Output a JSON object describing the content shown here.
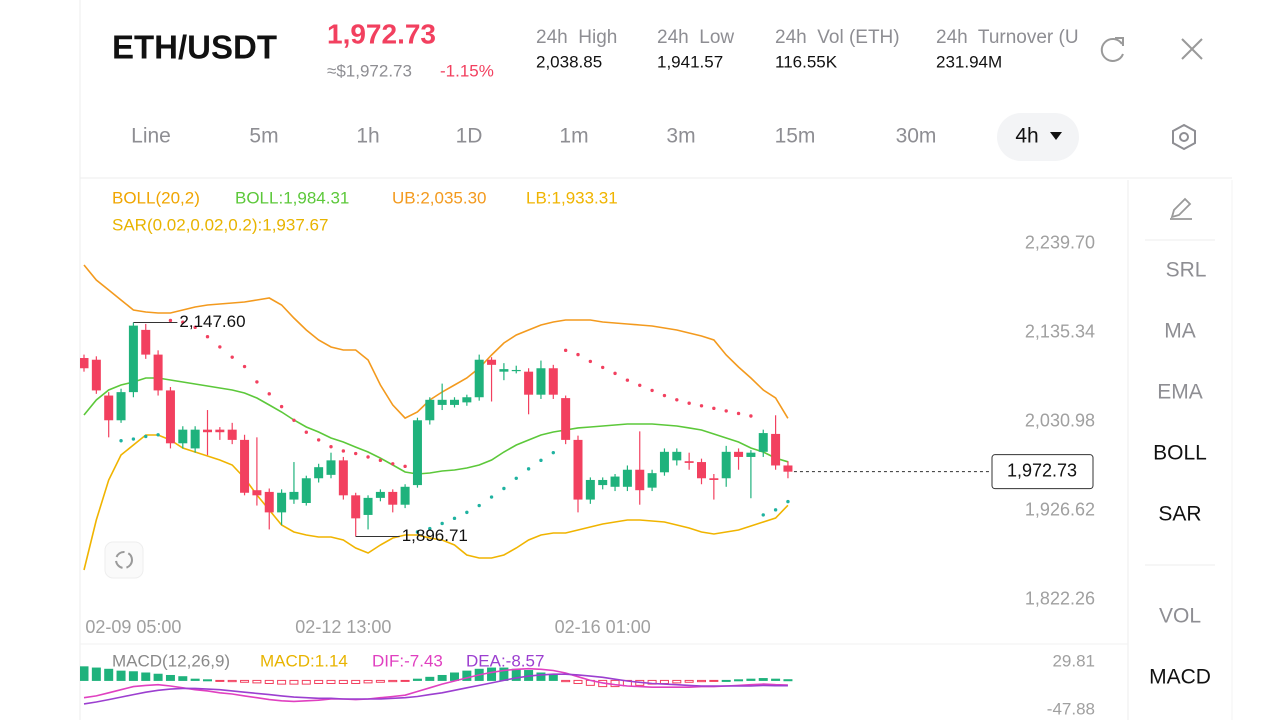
{
  "header": {
    "pair": "ETH/USDT",
    "price": "1,972.73",
    "approx": "≈$1,972.73",
    "change": "-1.15%",
    "stats": [
      {
        "label": "24h  High",
        "value": "2,038.85"
      },
      {
        "label": "24h  Low",
        "value": "1,941.57"
      },
      {
        "label": "24h  Vol (ETH)",
        "value": "116.55K"
      },
      {
        "label": "24h  Turnover (U",
        "value": "231.94M"
      }
    ]
  },
  "timeframes": [
    "Line",
    "5m",
    "1h",
    "1D",
    "1m",
    "3m",
    "15m",
    "30m",
    "4h"
  ],
  "side_tools": [
    "SRL",
    "MA",
    "EMA",
    "BOLL",
    "SAR",
    "VOL",
    "MACD"
  ],
  "chart_data": [
    {
      "type": "candlestick",
      "legend": [
        {
          "text": "BOLL(20,2)",
          "color": "#f0a500"
        },
        {
          "text": "BOLL:1,984.31",
          "color": "#5cc83a"
        },
        {
          "text": "UB:2,035.30",
          "color": "#f39a1e"
        },
        {
          "text": "LB:1,933.31",
          "color": "#f0b400"
        },
        {
          "text": "SAR(0.02,0.02,0.2):1,937.67",
          "color": "#e8b400"
        }
      ],
      "categories": [
        null,
        null,
        null,
        null,
        "02-09 05:00",
        null,
        null,
        null,
        null,
        null,
        null,
        null,
        null,
        null,
        null,
        null,
        null,
        null,
        null,
        null,
        null,
        "02-12 13:00",
        null,
        null,
        null,
        null,
        null,
        null,
        null,
        null,
        null,
        null,
        null,
        null,
        null,
        null,
        null,
        null,
        null,
        null,
        null,
        null,
        "02-16 01:00",
        null,
        null,
        null,
        null,
        null,
        null,
        null,
        null,
        null,
        null,
        null,
        null,
        null,
        null,
        null
      ],
      "open": [
        2106,
        2104,
        2062,
        2033,
        2066,
        2139,
        2110,
        2068,
        2006,
        2000,
        2022,
        2022,
        2022,
        2010,
        1951,
        1949,
        1925,
        1940,
        1936,
        1965,
        1969,
        1986,
        1945,
        1922,
        1942,
        1949,
        1934,
        1957,
        2033,
        2051,
        2051,
        2054,
        2060,
        2104,
        2090,
        2091,
        2090,
        2063,
        2094,
        2059,
        2010,
        1940,
        1957,
        1955,
        1955,
        1975,
        1954,
        1972,
        1986,
        1985,
        1984,
        1965,
        1965,
        1996,
        1990,
        1996,
        2017,
        1980
      ],
      "high": [
        2110,
        2108,
        2066,
        2070,
        2147.6,
        2146,
        2115,
        2072,
        2026,
        2026,
        2045,
        2025,
        2030,
        2016,
        2013,
        1953,
        1952,
        1984,
        1968,
        1982,
        1995,
        1990,
        1948,
        1945,
        1952,
        1952,
        1958,
        2036,
        2060,
        2076,
        2060,
        2063,
        2110,
        2107,
        2100,
        2097,
        2094,
        2103,
        2098,
        2062,
        2015,
        1966,
        1966,
        1970,
        1980,
        2020,
        1975,
        2000,
        2000,
        1995,
        1988,
        1970,
        2003,
        2000,
        1998,
        2022,
        2038.85,
        1985
      ],
      "low": [
        2090,
        2064,
        2013,
        2030,
        2060,
        2105,
        2062,
        2000,
        2000,
        1995,
        1992,
        2010,
        2005,
        1945,
        1933,
        1905,
        1910,
        1935,
        1933,
        1960,
        1965,
        1940,
        1896.71,
        1905,
        1938,
        1925,
        1930,
        1954,
        2028,
        2045,
        2048,
        2050,
        2056,
        2055,
        2080,
        2088,
        2040,
        2058,
        2058,
        2005,
        1925,
        1935,
        1952,
        1950,
        1950,
        1934,
        1950,
        1968,
        1980,
        1975,
        1958,
        1940,
        1955,
        1975,
        1941.57,
        1990,
        1975,
        1965
      ],
      "close": [
        2094,
        2068,
        2033,
        2066,
        2144,
        2110,
        2068,
        2006,
        2022,
        2022,
        2019,
        2019,
        2010,
        1948,
        1945,
        1925,
        1948,
        1949,
        1965,
        1978,
        1986,
        1945,
        1918,
        1942,
        1949,
        1934,
        1955,
        2033,
        2057,
        2057,
        2057,
        2060,
        2104,
        2098,
        2093,
        2092,
        2063,
        2094,
        2063,
        2010,
        1940,
        1963,
        1963,
        1967,
        1975,
        1951,
        1971,
        1996,
        1996,
        1983,
        1965,
        1963,
        1996,
        1990,
        1995,
        2018,
        1980,
        1972.73
      ],
      "up_color": "#1fb27c",
      "down_color": "#f2405f",
      "series": [
        {
          "color": "#f39a1e",
          "values": [
            2215.1,
            2197.5,
            2185.8,
            2174.0,
            2162.3,
            2160.0,
            2158.8,
            2158.8,
            2162.3,
            2165.8,
            2168.2,
            2169.3,
            2170.5,
            2171.7,
            2174.0,
            2176.4,
            2168.2,
            2152.9,
            2138.9,
            2127.1,
            2118.9,
            2115.4,
            2115.4,
            2103.7,
            2074.4,
            2050.9,
            2035.6,
            2042.7,
            2056.8,
            2066.2,
            2074.4,
            2082.6,
            2094.3,
            2109.5,
            2123.6,
            2133.0,
            2138.9,
            2144.7,
            2148.2,
            2150.6,
            2150.6,
            2150.6,
            2148.2,
            2147.1,
            2145.9,
            2144.7,
            2143.5,
            2141.2,
            2138.9,
            2135.3,
            2131.8,
            2127.1,
            2109.5,
            2095.5,
            2082.6,
            2068.5,
            2059.1,
            2035.3
          ]
        },
        {
          "color": "#5cc83a",
          "values": [
            2039.2,
            2056.8,
            2068.5,
            2074.4,
            2077.9,
            2082.6,
            2082.6,
            2080.2,
            2077.9,
            2075.5,
            2073.2,
            2070.9,
            2068.5,
            2065.0,
            2059.1,
            2050.9,
            2042.7,
            2033.3,
            2025.1,
            2019.3,
            2012.2,
            2007.5,
            2001.6,
            1995.8,
            1988.7,
            1980.6,
            1972.4,
            1970.0,
            1971.2,
            1973.5,
            1974.7,
            1977.0,
            1980.6,
            1986.4,
            1995.8,
            2004.0,
            2009.9,
            2015.7,
            2019.3,
            2021.6,
            2024.0,
            2025.1,
            2026.3,
            2027.5,
            2028.6,
            2028.6,
            2028.6,
            2027.5,
            2026.3,
            2024.0,
            2021.6,
            2016.9,
            2012.2,
            2007.5,
            2000.5,
            1995.8,
            1988.7,
            1984.31
          ]
        },
        {
          "color": "#f0b400",
          "values": [
            1857.4,
            1916.1,
            1963.0,
            1992.3,
            2004.0,
            2015.7,
            2015.7,
            2009.9,
            2000.5,
            1995.8,
            1991.1,
            1986.4,
            1980.6,
            1965.3,
            1945.4,
            1927.8,
            1910.2,
            1902.0,
            1898.5,
            1896.1,
            1896.1,
            1892.6,
            1883.2,
            1877.4,
            1886.7,
            1894.9,
            1898.5,
            1898.5,
            1894.9,
            1892.6,
            1886.7,
            1875.0,
            1871.5,
            1871.5,
            1875.0,
            1883.2,
            1892.6,
            1898.5,
            1900.8,
            1900.8,
            1904.3,
            1907.9,
            1911.4,
            1913.7,
            1916.1,
            1916.1,
            1914.9,
            1913.7,
            1910.2,
            1906.7,
            1902.0,
            1899.6,
            1902.0,
            1904.3,
            1909.0,
            1913.7,
            1918.4,
            1933.31
          ]
        }
      ],
      "sar": {
        "color_above": "#f2405f",
        "color_below": "#1fb2a0",
        "values": [
          null,
          null,
          null,
          2009,
          2011,
          2014,
          2016,
          2150,
          2148,
          2142,
          2131,
          2119,
          2107,
          2096,
          2078,
          2064,
          2049,
          2033,
          2019,
          2010,
          2002,
          1997,
          1994,
          1990,
          1986,
          1982,
          1979,
          1902,
          1906,
          1912,
          1918,
          1925,
          1933,
          1943,
          1953,
          1965,
          1976,
          1986,
          1995,
          2115,
          2110,
          2102,
          2095,
          2088,
          2080,
          2074,
          2068,
          2062,
          2057,
          2053,
          2050,
          2047,
          2044,
          2041,
          2038,
          1922,
          1928,
          1937.67
        ]
      },
      "annotations": [
        {
          "value": 2147.6,
          "label": "2,147.60"
        },
        {
          "value": 1896.71,
          "label": "1,896.71"
        }
      ],
      "last_price": {
        "value": 1972.73,
        "label": "1,972.73"
      },
      "ylim": [
        1775.35,
        2303.02
      ],
      "yticks": [
        {
          "value": 2239.7,
          "label": "2,239.70"
        },
        {
          "value": 2135.34,
          "label": "2,135.34"
        },
        {
          "value": 2030.98,
          "label": "2,030.98"
        },
        {
          "value": 1926.62,
          "label": "1,926.62"
        },
        {
          "value": 1822.26,
          "label": "1,822.26"
        }
      ]
    },
    {
      "type": "macd",
      "legend": [
        {
          "text": "MACD(12,26,9)",
          "color": "#8a8a8a"
        },
        {
          "text": "MACD:1.14",
          "color": "#e8b400"
        },
        {
          "text": "DIF:-7.43",
          "color": "#e040c0"
        },
        {
          "text": "DEA:-8.57",
          "color": "#9c3fd0"
        }
      ],
      "values": [
        22,
        20,
        18,
        15,
        14,
        12,
        10,
        8,
        6,
        2,
        1,
        -1,
        -2,
        -3,
        -4,
        -5,
        -6,
        -6,
        -6,
        -5,
        -5,
        -5,
        -5,
        -4,
        -3,
        -2,
        -1,
        2,
        5,
        8,
        12,
        15,
        18,
        20,
        20,
        18,
        16,
        12,
        9,
        -2,
        -5,
        -8,
        -10,
        -10,
        -9,
        -8,
        -6,
        -5,
        -4,
        -3,
        -2,
        -1,
        0,
        1,
        2,
        3,
        2,
        1.14
      ],
      "up_color": "#1fb27c",
      "down_color": "#f2405f",
      "series": [
        {
          "color": "#e040c0",
          "values": [
            -28,
            -25,
            -20,
            -15,
            -10,
            -8,
            -7,
            -9,
            -12,
            -15,
            -17,
            -20,
            -22,
            -25,
            -28,
            -31,
            -33,
            -34,
            -33,
            -32,
            -30,
            -30,
            -31,
            -30,
            -28,
            -26,
            -24,
            -18,
            -12,
            -6,
            -1,
            4,
            9,
            13,
            16,
            18,
            19,
            18,
            16,
            12,
            6,
            0,
            -4,
            -7,
            -9,
            -10,
            -11,
            -11,
            -11,
            -11,
            -10,
            -10,
            -9,
            -8,
            -7,
            -6,
            -7,
            -7.43
          ]
        },
        {
          "color": "#9c3fd0",
          "values": [
            -38,
            -35,
            -31,
            -27,
            -23,
            -19,
            -16,
            -14,
            -13,
            -13,
            -14,
            -15,
            -17,
            -19,
            -21,
            -23,
            -25,
            -27,
            -28,
            -29,
            -29,
            -30,
            -30,
            -30,
            -30,
            -29,
            -28,
            -26,
            -23,
            -20,
            -16,
            -12,
            -8,
            -4,
            0,
            4,
            7,
            9,
            10,
            10,
            9,
            7,
            5,
            2,
            -1,
            -3,
            -5,
            -6,
            -7,
            -8,
            -9,
            -9,
            -9,
            -9,
            -9,
            -8,
            -8.5,
            -8.57
          ]
        }
      ],
      "ylim": [
        -60.83,
        52.47
      ],
      "yticks": [
        29.81,
        -47.88
      ]
    }
  ]
}
